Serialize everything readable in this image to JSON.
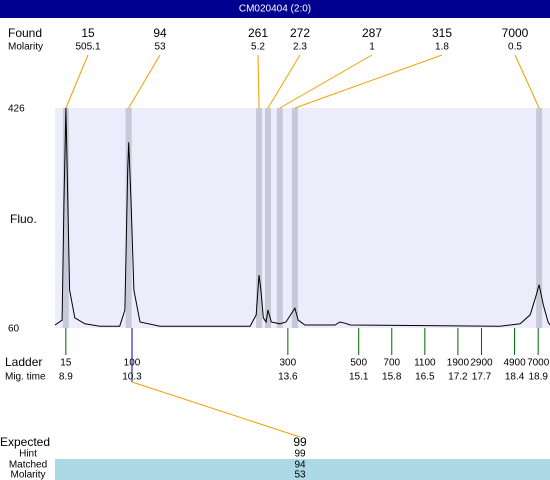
{
  "header": {
    "title": "CM020404 (2:0)"
  },
  "chart_data": {
    "type": "line",
    "ylabel": "Fluo.",
    "ylim": [
      60,
      426
    ],
    "yticks": [
      60,
      426
    ],
    "xlim": [
      8.67,
      19.15
    ],
    "color": "#000000",
    "background": "#ececfa",
    "x": [
      8.67,
      8.82,
      8.86,
      8.9,
      8.94,
      8.98,
      9.09,
      9.3,
      9.62,
      10.04,
      10.15,
      10.21,
      10.23,
      10.28,
      10.34,
      10.47,
      10.89,
      12.8,
      12.93,
      12.99,
      13.03,
      13.08,
      13.14,
      13.18,
      13.25,
      13.43,
      13.56,
      13.75,
      13.82,
      13.96,
      14.6,
      14.7,
      14.81,
      14.92,
      18.09,
      18.52,
      18.73,
      18.86,
      18.92,
      19.01,
      19.11,
      19.15
    ],
    "values": [
      65,
      73,
      273,
      426,
      273,
      123,
      77,
      67,
      63,
      63,
      90,
      323,
      369,
      273,
      123,
      70,
      63,
      63,
      82,
      148,
      123,
      77,
      70,
      90,
      70,
      67,
      70,
      93,
      73,
      65,
      65,
      70,
      68,
      65,
      63,
      67,
      82,
      115,
      132,
      98,
      70,
      65
    ]
  },
  "found": {
    "label": "Found",
    "molarity_label": "Molarity",
    "color": "#f0a000",
    "band_color": "#c8c8d8",
    "peaks": [
      {
        "size": 15,
        "molarity": 505.1,
        "time": 8.9
      },
      {
        "size": 94,
        "molarity": 53,
        "time": 10.23
      },
      {
        "size": 261,
        "molarity": 5.2,
        "time": 12.99
      },
      {
        "size": 272,
        "molarity": 2.3,
        "time": 13.18
      },
      {
        "size": 287,
        "molarity": 1,
        "time": 13.43
      },
      {
        "size": 315,
        "molarity": 1.8,
        "time": 13.75
      },
      {
        "size": 7000,
        "molarity": 0.5,
        "time": 18.92
      }
    ]
  },
  "ladder": {
    "label": "Ladder",
    "time_label": "Mig. time",
    "color": "#006400",
    "peaks": [
      {
        "size": 15,
        "time": 8.9
      },
      {
        "size": 100,
        "time": 10.3
      },
      {
        "size": 300,
        "time": 13.6
      },
      {
        "size": 500,
        "time": 15.1
      },
      {
        "size": 700,
        "time": 15.8
      },
      {
        "size": 1100,
        "time": 16.5
      },
      {
        "size": 1900,
        "time": 17.2
      },
      {
        "size": 2900,
        "time": 17.7
      },
      {
        "size": 4900,
        "time": 18.4
      },
      {
        "size": 7000,
        "time": 18.9
      }
    ]
  },
  "expected": {
    "rows": [
      {
        "label": "Expected",
        "value": 99
      },
      {
        "label": "Hint",
        "value": 99
      },
      {
        "label": "Matched",
        "value": 94
      },
      {
        "label": "Molarity",
        "value": 53
      }
    ]
  }
}
